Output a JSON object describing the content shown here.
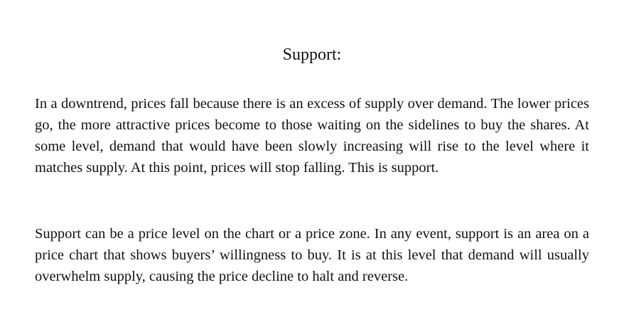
{
  "document": {
    "title": "Support:",
    "paragraphs": [
      "In a downtrend, prices fall because there is an excess of supply over demand. The lower prices go, the more attractive prices become to those waiting on the sidelines to buy the shares. At some level, demand that would have been slowly increasing will rise to the level where it matches supply. At this point, prices will stop falling. This is support.",
      "Support can be a price level on the chart or a price zone. In any event, support is an area on a price chart that shows buyers’ willingness to buy. It is at this level that demand will usually overwhelm supply, causing the price decline to halt and reverse."
    ]
  }
}
